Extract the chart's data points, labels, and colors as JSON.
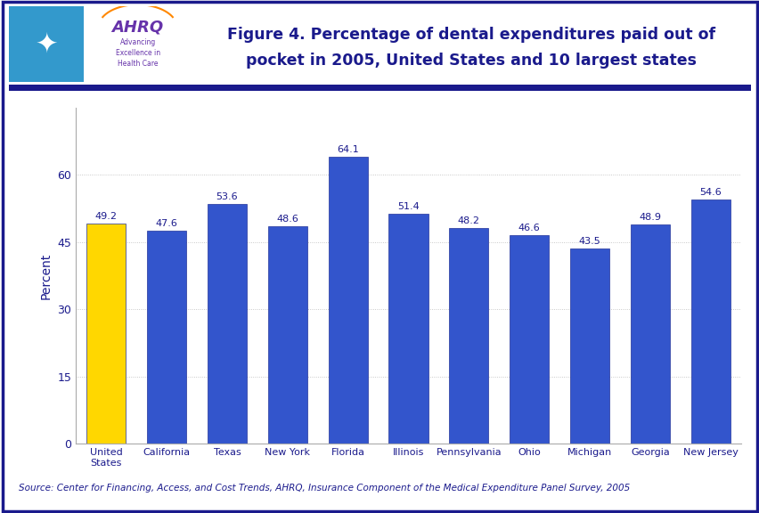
{
  "categories": [
    "United\nStates",
    "California",
    "Texas",
    "New York",
    "Florida",
    "Illinois",
    "Pennsylvania",
    "Ohio",
    "Michigan",
    "Georgia",
    "New Jersey"
  ],
  "values": [
    49.2,
    47.6,
    53.6,
    48.6,
    64.1,
    51.4,
    48.2,
    46.6,
    43.5,
    48.9,
    54.6
  ],
  "bar_colors": [
    "#FFD700",
    "#3355CC",
    "#3355CC",
    "#3355CC",
    "#3355CC",
    "#3355CC",
    "#3355CC",
    "#3355CC",
    "#3355CC",
    "#3355CC",
    "#3355CC"
  ],
  "title_line1": "Figure 4. Percentage of dental expenditures paid out of",
  "title_line2": "pocket in 2005, United States and 10 largest states",
  "ylabel": "Percent",
  "ylim": [
    0,
    75
  ],
  "yticks": [
    0,
    15,
    30,
    45,
    60
  ],
  "source_text": "Source: Center for Financing, Access, and Cost Trends, AHRQ, Insurance Component of the Medical Expenditure Panel Survey, 2005",
  "title_color": "#1A1A8C",
  "ylabel_color": "#1A1A8C",
  "tick_label_color": "#1A1A8C",
  "source_color": "#1A1A8C",
  "background_color": "#FFFFFF",
  "border_color": "#1A1A8C",
  "divider_color": "#1A1A8C",
  "bar_value_color": "#1A1A8C",
  "bar_edge_color": "#223399",
  "logo_bg": "#3399CC",
  "logo_right_bg": "#FFFFFF",
  "ahrq_color": "#6633AA",
  "ahrq_sub_color": "#6633AA"
}
